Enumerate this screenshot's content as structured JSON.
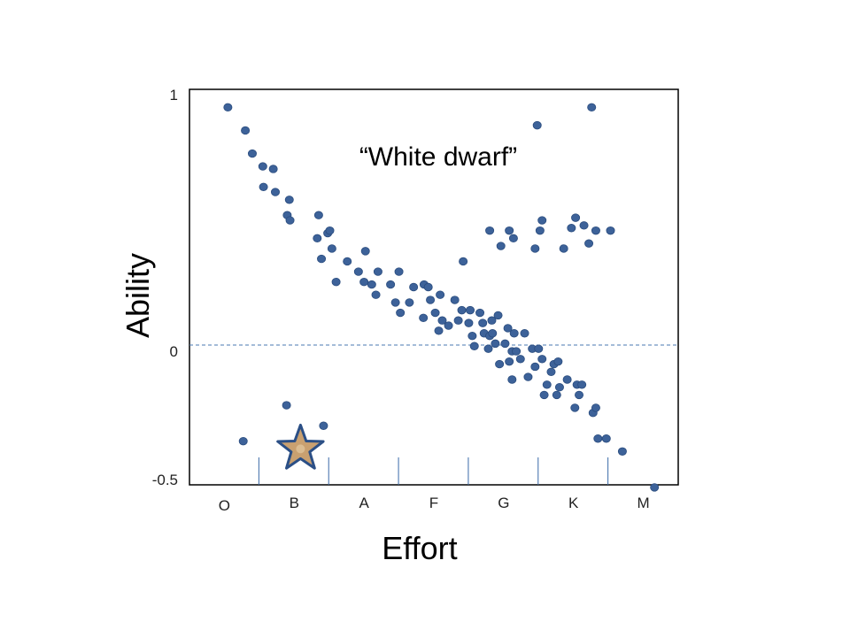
{
  "chart_data": {
    "type": "scatter",
    "xlabel": "Effort",
    "ylabel": "Ability",
    "x_categories": [
      "O",
      "B",
      "A",
      "F",
      "G",
      "K",
      "M"
    ],
    "x_axis_note": "x values are positions along the category axis, 0 = left edge, 7 = right edge",
    "xlim": [
      0,
      7
    ],
    "ylim": [
      -0.52,
      1.02
    ],
    "y_ticks": [
      1,
      0,
      -0.5
    ],
    "y_tick_labels": [
      "1",
      "0",
      "-0.5"
    ],
    "reference_line_y": 0,
    "annotation": "“White dwarf”",
    "highlight": {
      "marker": "star",
      "x": 1.59,
      "y": -0.38,
      "fill": "#c9a070",
      "stroke": "#2b4f86"
    },
    "point_color": "#3d6299",
    "points": [
      [
        0.55,
        0.95
      ],
      [
        0.8,
        0.86
      ],
      [
        0.9,
        0.77
      ],
      [
        1.05,
        0.72
      ],
      [
        1.2,
        0.71
      ],
      [
        1.06,
        0.64
      ],
      [
        1.23,
        0.62
      ],
      [
        1.43,
        0.59
      ],
      [
        1.4,
        0.53
      ],
      [
        1.44,
        0.51
      ],
      [
        1.85,
        0.53
      ],
      [
        1.83,
        0.44
      ],
      [
        1.98,
        0.46
      ],
      [
        2.01,
        0.47
      ],
      [
        1.89,
        0.36
      ],
      [
        2.04,
        0.4
      ],
      [
        2.1,
        0.27
      ],
      [
        2.26,
        0.35
      ],
      [
        2.42,
        0.31
      ],
      [
        2.5,
        0.27
      ],
      [
        2.52,
        0.39
      ],
      [
        2.61,
        0.26
      ],
      [
        2.67,
        0.22
      ],
      [
        2.7,
        0.31
      ],
      [
        2.88,
        0.26
      ],
      [
        2.95,
        0.19
      ],
      [
        3.0,
        0.31
      ],
      [
        3.02,
        0.15
      ],
      [
        3.15,
        0.19
      ],
      [
        3.21,
        0.25
      ],
      [
        3.35,
        0.13
      ],
      [
        3.36,
        0.26
      ],
      [
        3.42,
        0.25
      ],
      [
        3.45,
        0.2
      ],
      [
        3.52,
        0.15
      ],
      [
        3.57,
        0.08
      ],
      [
        3.59,
        0.22
      ],
      [
        3.62,
        0.12
      ],
      [
        3.71,
        0.1
      ],
      [
        3.8,
        0.2
      ],
      [
        3.85,
        0.12
      ],
      [
        3.9,
        0.16
      ],
      [
        4.0,
        0.11
      ],
      [
        4.02,
        0.16
      ],
      [
        3.92,
        0.35
      ],
      [
        4.05,
        0.06
      ],
      [
        4.08,
        0.02
      ],
      [
        4.16,
        0.15
      ],
      [
        4.2,
        0.11
      ],
      [
        4.22,
        0.07
      ],
      [
        4.28,
        0.01
      ],
      [
        4.3,
        0.06
      ],
      [
        4.33,
        0.12
      ],
      [
        4.34,
        0.07
      ],
      [
        4.38,
        0.03
      ],
      [
        4.42,
        0.14
      ],
      [
        4.44,
        -0.05
      ],
      [
        4.52,
        0.03
      ],
      [
        4.56,
        0.09
      ],
      [
        4.58,
        -0.04
      ],
      [
        4.62,
        -0.11
      ],
      [
        4.62,
        0.0
      ],
      [
        4.65,
        0.07
      ],
      [
        4.68,
        0.0
      ],
      [
        4.74,
        -0.03
      ],
      [
        4.85,
        -0.1
      ],
      [
        4.8,
        0.07
      ],
      [
        4.91,
        0.01
      ],
      [
        4.95,
        -0.06
      ],
      [
        5.0,
        0.01
      ],
      [
        5.05,
        -0.03
      ],
      [
        5.08,
        -0.17
      ],
      [
        5.12,
        -0.13
      ],
      [
        5.18,
        -0.08
      ],
      [
        5.22,
        -0.05
      ],
      [
        5.26,
        -0.17
      ],
      [
        5.28,
        -0.04
      ],
      [
        5.3,
        -0.14
      ],
      [
        5.41,
        -0.11
      ],
      [
        5.52,
        -0.22
      ],
      [
        5.55,
        -0.13
      ],
      [
        5.58,
        -0.17
      ],
      [
        5.62,
        -0.13
      ],
      [
        5.78,
        -0.24
      ],
      [
        5.82,
        -0.22
      ],
      [
        5.85,
        -0.34
      ],
      [
        5.97,
        -0.34
      ],
      [
        6.2,
        -0.39
      ],
      [
        6.66,
        -0.53
      ],
      [
        4.3,
        0.47
      ],
      [
        4.46,
        0.41
      ],
      [
        4.58,
        0.47
      ],
      [
        4.64,
        0.44
      ],
      [
        4.95,
        0.4
      ],
      [
        5.02,
        0.47
      ],
      [
        5.05,
        0.51
      ],
      [
        5.36,
        0.4
      ],
      [
        5.47,
        0.48
      ],
      [
        5.53,
        0.52
      ],
      [
        5.65,
        0.49
      ],
      [
        5.72,
        0.42
      ],
      [
        5.82,
        0.47
      ],
      [
        6.03,
        0.47
      ],
      [
        4.98,
        0.88
      ],
      [
        5.76,
        0.95
      ],
      [
        0.77,
        -0.35
      ],
      [
        1.39,
        -0.21
      ],
      [
        1.92,
        -0.29
      ]
    ]
  }
}
